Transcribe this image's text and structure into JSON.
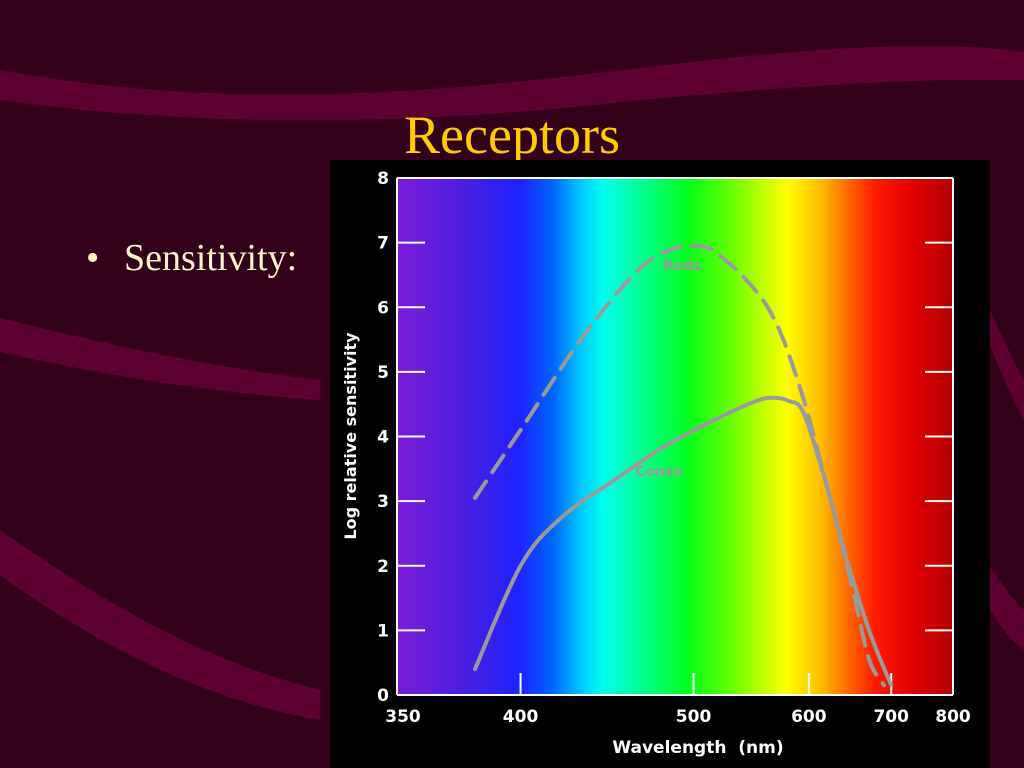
{
  "slide": {
    "title": "Receptors",
    "bullets": [
      {
        "text": "Sensitivity:"
      }
    ]
  },
  "colors": {
    "background": "#320018",
    "ribbon": "#5e0032",
    "title": "#ffcc00",
    "curve": "#9a9a9a"
  },
  "chart_data": {
    "type": "line",
    "title": "",
    "xlabel": "Wavelength  (nm)",
    "ylabel": "Log relative sensitivity",
    "x_scale": "reciprocal",
    "xlim": [
      350,
      800
    ],
    "ylim": [
      0,
      8
    ],
    "x_ticks": [
      350,
      400,
      500,
      600,
      700,
      800
    ],
    "y_ticks": [
      0,
      1,
      2,
      3,
      4,
      5,
      6,
      7,
      8
    ],
    "background": "visible spectrum",
    "series": [
      {
        "name": "Rods",
        "style": "dashed",
        "points": [
          [
            380,
            3.05
          ],
          [
            400,
            4.1
          ],
          [
            430,
            5.5
          ],
          [
            460,
            6.5
          ],
          [
            480,
            6.85
          ],
          [
            500,
            6.95
          ],
          [
            520,
            6.8
          ],
          [
            560,
            6.0
          ],
          [
            590,
            4.8
          ],
          [
            620,
            3.2
          ],
          [
            650,
            1.6
          ],
          [
            670,
            0.55
          ],
          [
            690,
            0.15
          ]
        ]
      },
      {
        "name": "Cones",
        "style": "solid",
        "points": [
          [
            380,
            0.4
          ],
          [
            400,
            2.0
          ],
          [
            420,
            2.75
          ],
          [
            450,
            3.35
          ],
          [
            480,
            3.85
          ],
          [
            520,
            4.3
          ],
          [
            550,
            4.55
          ],
          [
            565,
            4.6
          ],
          [
            580,
            4.55
          ],
          [
            595,
            4.35
          ],
          [
            620,
            3.2
          ],
          [
            640,
            2.2
          ],
          [
            670,
            1.0
          ],
          [
            700,
            0.15
          ]
        ]
      }
    ]
  }
}
